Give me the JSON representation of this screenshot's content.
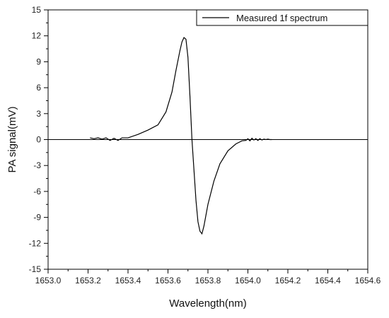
{
  "chart_data": {
    "type": "line",
    "title": "",
    "xlabel": "Wavelength(nm)",
    "ylabel": "PA signal(mV)",
    "xlim": [
      1653.0,
      1654.6
    ],
    "ylim": [
      -15,
      15
    ],
    "x_ticks": [
      "1653.0",
      "1653.2",
      "1653.4",
      "1653.6",
      "1653.8",
      "1654.0",
      "1654.2",
      "1654.4",
      "1654.6"
    ],
    "y_ticks": [
      "-15",
      "-12",
      "-9",
      "-6",
      "-3",
      "0",
      "3",
      "6",
      "9",
      "12",
      "15"
    ],
    "grid": false,
    "legend_position": "top-right",
    "zero_line": true,
    "series": [
      {
        "name": "Measured 1f spectrum",
        "color": "#000000",
        "x": [
          1653.21,
          1653.23,
          1653.25,
          1653.27,
          1653.29,
          1653.31,
          1653.33,
          1653.35,
          1653.37,
          1653.4,
          1653.45,
          1653.5,
          1653.55,
          1653.59,
          1653.62,
          1653.64,
          1653.66,
          1653.67,
          1653.68,
          1653.69,
          1653.7,
          1653.71,
          1653.72,
          1653.73,
          1653.74,
          1653.75,
          1653.76,
          1653.77,
          1653.78,
          1653.8,
          1653.83,
          1653.86,
          1653.9,
          1653.94,
          1653.97,
          1653.99,
          1654.0,
          1654.01,
          1654.02,
          1654.03,
          1654.04,
          1654.05,
          1654.06,
          1654.07,
          1654.08,
          1654.09,
          1654.1,
          1654.11,
          1654.12
        ],
        "y": [
          0.2,
          0.1,
          0.2,
          0.05,
          0.2,
          -0.1,
          0.15,
          -0.1,
          0.2,
          0.2,
          0.6,
          1.1,
          1.7,
          3.2,
          5.5,
          8.0,
          10.3,
          11.3,
          11.8,
          11.6,
          9.5,
          5.0,
          0.0,
          -3.5,
          -7.0,
          -9.5,
          -10.6,
          -10.9,
          -10.0,
          -7.5,
          -4.8,
          -2.8,
          -1.3,
          -0.5,
          -0.15,
          -0.1,
          0.1,
          -0.15,
          0.15,
          -0.05,
          0.1,
          -0.1,
          0.1,
          -0.05,
          0.05,
          0.0,
          0.05,
          0.0,
          0.0
        ]
      }
    ]
  }
}
